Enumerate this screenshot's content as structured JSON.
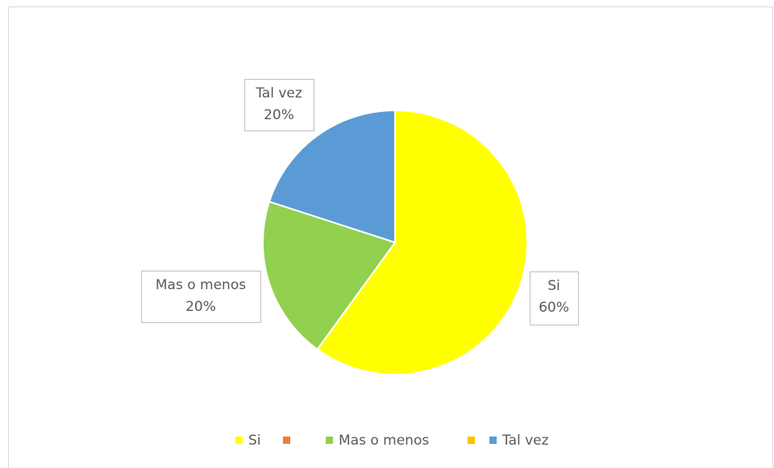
{
  "chart_data": {
    "type": "pie",
    "categories": [
      "Si",
      null,
      "Mas o menos",
      null,
      "Tal vez"
    ],
    "values": [
      60,
      0,
      20,
      0,
      20
    ],
    "value_labels": [
      "60%",
      null,
      "20%",
      null,
      "20%"
    ],
    "colors": [
      "#ffff00",
      "#ed7d31",
      "#92d050",
      "#ffc000",
      "#5b9bd5"
    ],
    "legend": "bottom"
  }
}
